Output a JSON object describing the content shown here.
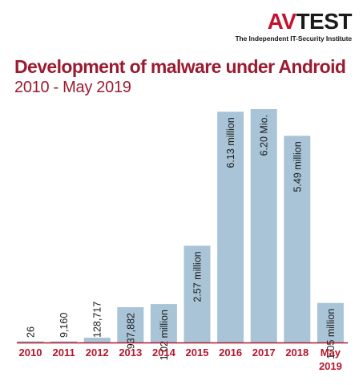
{
  "logo": {
    "brand_av": "AV",
    "brand_test": "TEST",
    "tagline": "The Independent IT-Security Institute"
  },
  "colors": {
    "title": "#9b1b30",
    "bar": "#a9c4d6",
    "axis_label": "#b5162c",
    "bar_label": "#1a1a1a"
  },
  "chart_data": {
    "type": "bar",
    "title": "Development of malware under Android",
    "subtitle": "2010 - May 2019",
    "categories": [
      "2010",
      "2011",
      "2012",
      "2013",
      "2014",
      "2015",
      "2016",
      "2017",
      "2018",
      "May 2019"
    ],
    "category_lines": [
      [
        "2010"
      ],
      [
        "2011"
      ],
      [
        "2012"
      ],
      [
        "2013"
      ],
      [
        "2014"
      ],
      [
        "2015"
      ],
      [
        "2016"
      ],
      [
        "2017"
      ],
      [
        "2018"
      ],
      [
        "May",
        "2019"
      ]
    ],
    "values": [
      26,
      9160,
      128717,
      937882,
      1020000,
      2570000,
      6130000,
      6200000,
      5490000,
      1050000
    ],
    "data_labels": [
      "26",
      "9,160",
      "128,717",
      "937,882",
      "1.02 million",
      "2.57 million",
      "6.13 million",
      "6.20 Mio.",
      "5.49 million",
      "1.05 million"
    ],
    "ylim": [
      0,
      6200000
    ],
    "grid": false,
    "legend": "none"
  }
}
